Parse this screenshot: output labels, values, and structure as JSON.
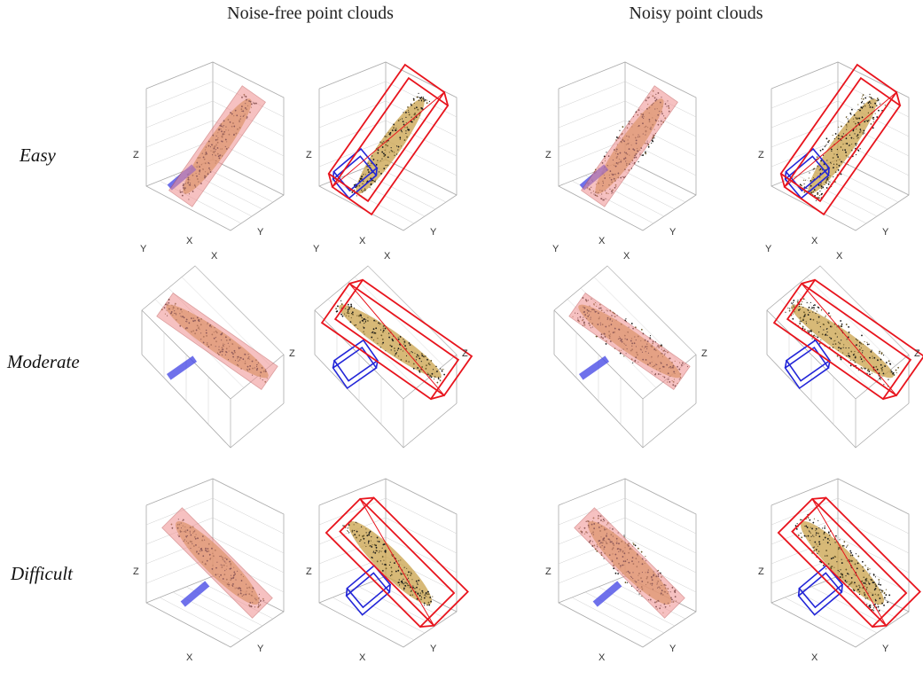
{
  "columns": {
    "noise_free": "Noise-free point clouds",
    "noisy": "Noisy point clouds"
  },
  "rows": [
    "Easy",
    "Moderate",
    "Difficult"
  ],
  "axes": {
    "x": "X",
    "y": "Y",
    "z": "Z"
  },
  "colors": {
    "obb_fill": "#f08f8f",
    "red_box": "#e8141d",
    "blue_box": "#2326d8",
    "points_dark": "#1a1a1a",
    "points_tan": "#c9a24a",
    "grid": "#cfcfcf"
  }
}
